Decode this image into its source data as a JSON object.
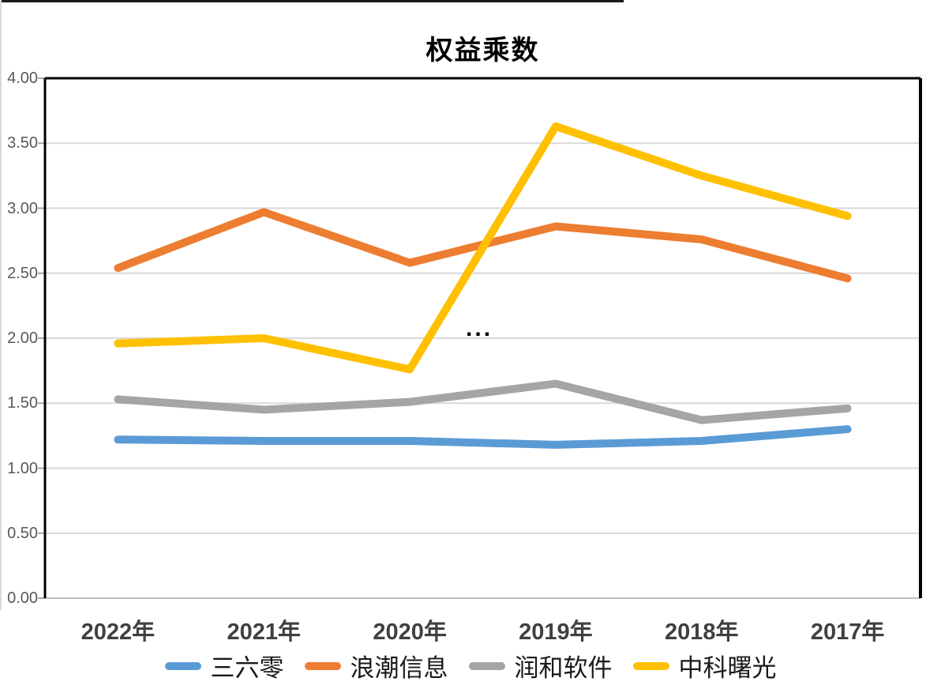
{
  "chart_data": {
    "type": "line",
    "title": "权益乘数",
    "categories": [
      "2022年",
      "2021年",
      "2020年",
      "2019年",
      "2018年",
      "2017年"
    ],
    "series": [
      {
        "name": "三六零",
        "color": "#5B9BD5",
        "values": [
          1.22,
          1.21,
          1.21,
          1.18,
          1.21,
          1.3
        ]
      },
      {
        "name": "浪潮信息",
        "color": "#ED7D31",
        "values": [
          2.54,
          2.97,
          2.58,
          2.86,
          2.76,
          2.46
        ]
      },
      {
        "name": "润和软件",
        "color": "#A5A5A5",
        "values": [
          1.53,
          1.45,
          1.51,
          1.65,
          1.37,
          1.46
        ]
      },
      {
        "name": "中科曙光",
        "color": "#FFC000",
        "values": [
          1.96,
          2.0,
          1.76,
          3.63,
          3.25,
          2.94
        ]
      }
    ],
    "y_axis": {
      "min": 0,
      "max": 4,
      "step": 0.5,
      "tick_labels": [
        "0.00",
        "0.50",
        "1.00",
        "1.50",
        "2.00",
        "2.50",
        "3.00",
        "3.50",
        "4.00"
      ]
    },
    "grid": true,
    "legend_position": "bottom",
    "annotation": {
      "text": "...",
      "x_frac": 0.496,
      "y_value": 2.07
    }
  }
}
